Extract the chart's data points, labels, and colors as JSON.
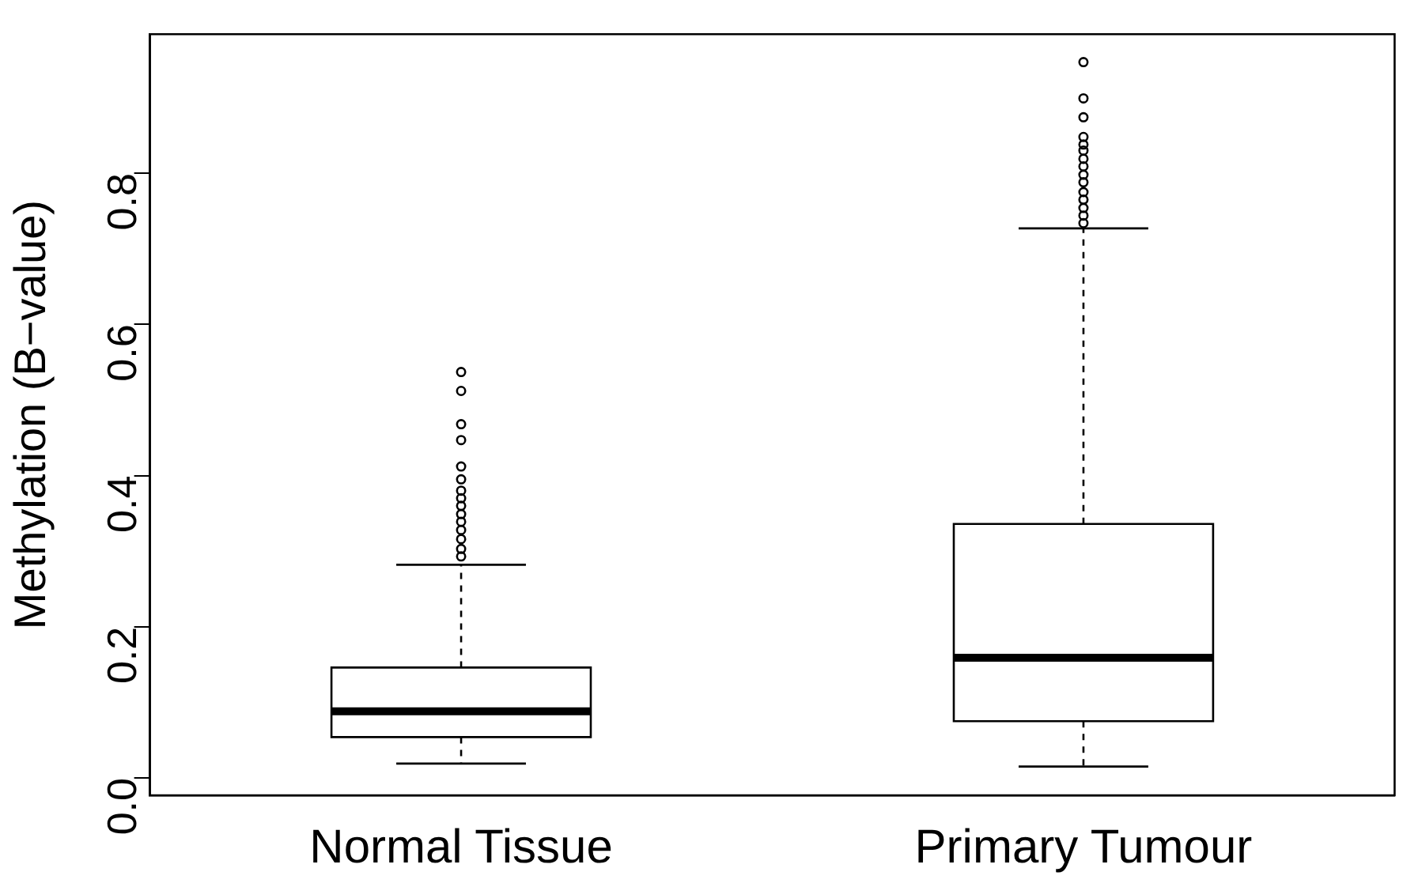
{
  "chart_data": {
    "type": "box",
    "ylabel": "Methylation (B−value)",
    "categories": [
      "Normal Tissue",
      "Primary Tumour"
    ],
    "boxes": [
      {
        "low": 0.019,
        "q1": 0.054,
        "median": 0.088,
        "q3": 0.146,
        "high": 0.282,
        "outliers": [
          0.537,
          0.512,
          0.468,
          0.447,
          0.412,
          0.395,
          0.38,
          0.37,
          0.36,
          0.349,
          0.339,
          0.328,
          0.316,
          0.303,
          0.293
        ]
      },
      {
        "low": 0.015,
        "q1": 0.075,
        "median": 0.159,
        "q3": 0.336,
        "high": 0.727,
        "outliers": [
          0.947,
          0.899,
          0.874,
          0.848,
          0.838,
          0.83,
          0.819,
          0.809,
          0.798,
          0.788,
          0.775,
          0.765,
          0.754,
          0.744,
          0.734
        ]
      }
    ],
    "ylim": [
      -0.023,
      0.984
    ],
    "yticks": [
      {
        "value": 0,
        "label": "0.0"
      },
      0.2,
      0.4,
      0.6,
      0.8
    ],
    "grid": false,
    "legend": false,
    "color": "#000000"
  }
}
